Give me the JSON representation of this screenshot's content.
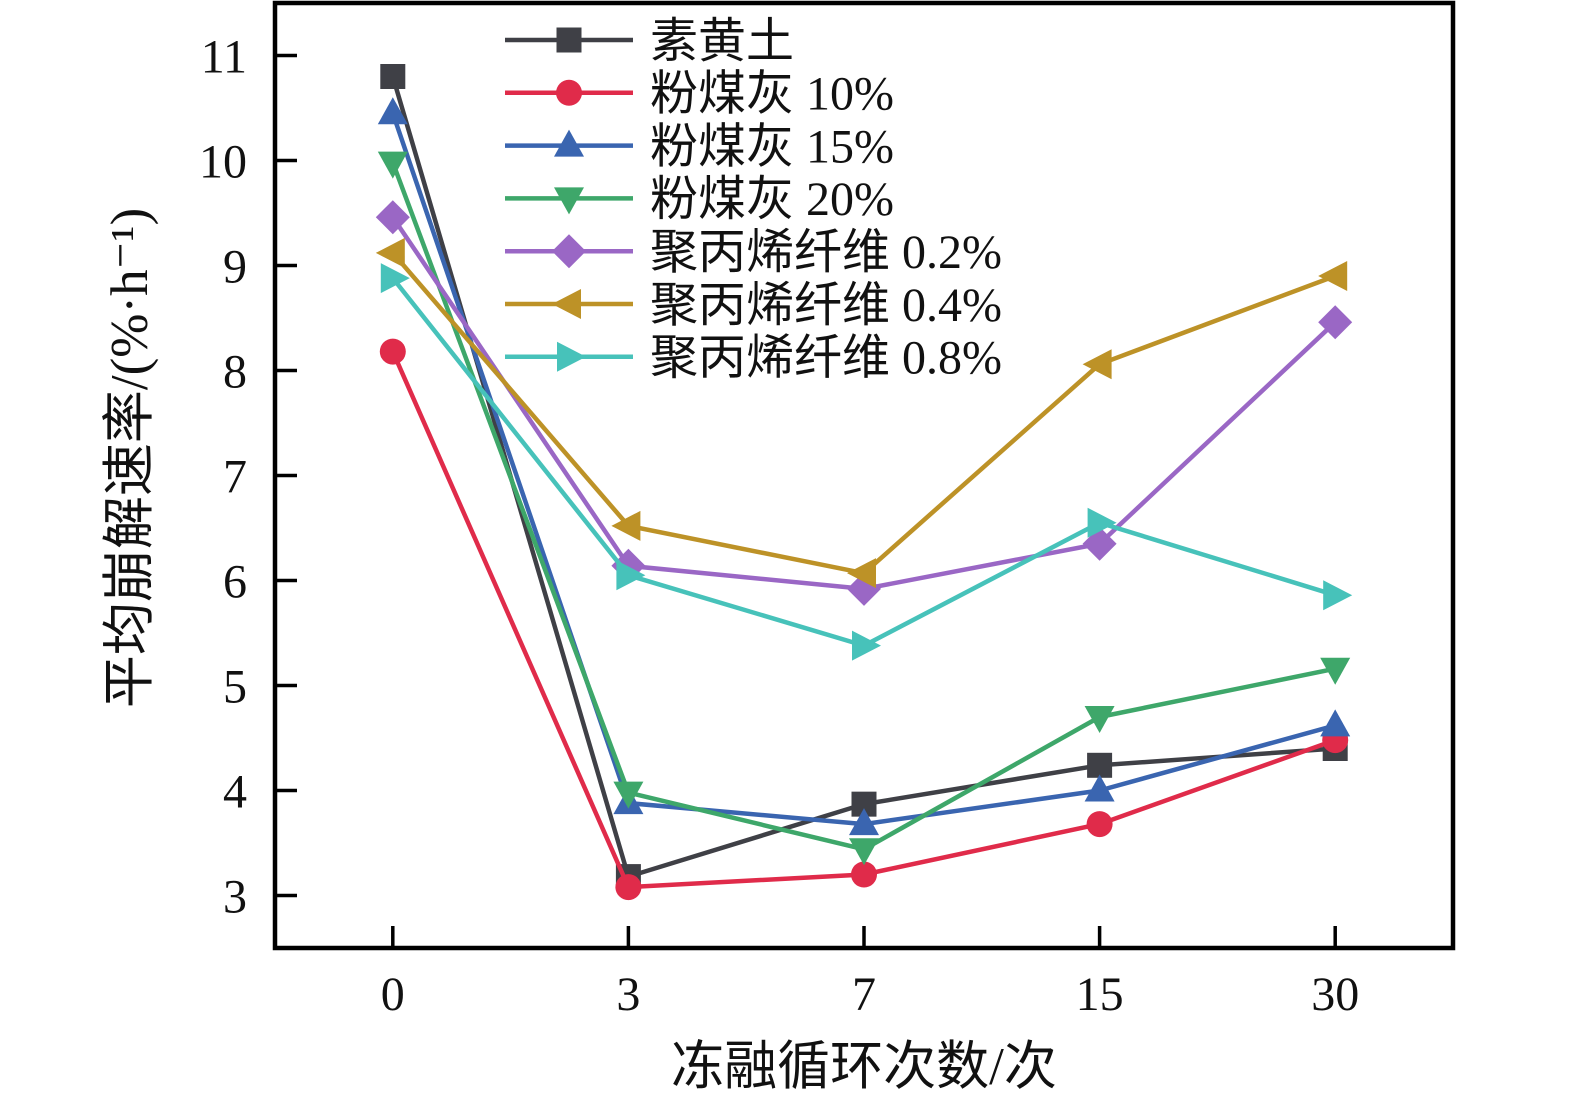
{
  "chart_data": {
    "type": "line",
    "title": "",
    "xlabel": "冻融循环次数/次",
    "ylabel": "平均崩解速率/(%·h⁻¹)",
    "x_tick_labels": [
      "0",
      "3",
      "7",
      "15",
      "30"
    ],
    "x_categories": [
      0,
      3,
      7,
      15,
      30
    ],
    "y_ticks": [
      3,
      4,
      5,
      6,
      7,
      8,
      9,
      10,
      11
    ],
    "ylim": [
      2.5,
      11.5
    ],
    "grid": false,
    "legend_position": "top-left-inside",
    "frame_color": "#000000",
    "series": [
      {
        "name": "素黄土",
        "color": "#3f4046",
        "marker": "square",
        "values": [
          10.8,
          3.18,
          3.87,
          4.24,
          4.4
        ]
      },
      {
        "name": "粉煤灰 10%",
        "color": "#e02b4a",
        "marker": "circle",
        "values": [
          8.18,
          3.08,
          3.2,
          3.68,
          4.48
        ]
      },
      {
        "name": "粉煤灰 15%",
        "color": "#3a65b0",
        "marker": "triangle-up",
        "values": [
          10.45,
          3.88,
          3.68,
          4.0,
          4.62
        ]
      },
      {
        "name": "粉煤灰 20%",
        "color": "#3ea76a",
        "marker": "triangle-down",
        "values": [
          9.98,
          3.98,
          3.44,
          4.7,
          5.16
        ]
      },
      {
        "name": "聚丙烯纤维 0.2%",
        "color": "#9a67c5",
        "marker": "diamond",
        "values": [
          9.46,
          6.14,
          5.92,
          6.35,
          8.46
        ]
      },
      {
        "name": "聚丙烯纤维 0.4%",
        "color": "#bd9227",
        "marker": "triangle-left",
        "values": [
          9.12,
          6.52,
          6.07,
          8.06,
          8.9
        ]
      },
      {
        "name": "聚丙烯纤维 0.8%",
        "color": "#47c2ba",
        "marker": "triangle-right",
        "values": [
          8.88,
          6.05,
          5.38,
          6.55,
          5.86
        ]
      }
    ]
  }
}
